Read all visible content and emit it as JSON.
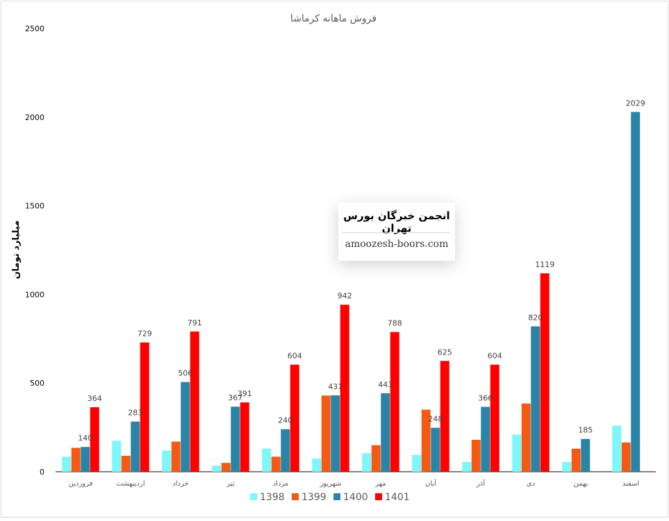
{
  "chart_data": {
    "type": "bar",
    "title": "فروش ماهانه کرماشا",
    "ylabel": "میلیارد تومان",
    "xlabel": "",
    "ylim": [
      0,
      2500
    ],
    "yticks": [
      0,
      500,
      1000,
      1500,
      2000,
      2500
    ],
    "grid": false,
    "legend_position": "bottom",
    "categories": [
      "فروردین",
      "اردیبهشت",
      "خرداد",
      "تیر",
      "مرداد",
      "شهریور",
      "مهر",
      "آبان",
      "آذر",
      "دی",
      "بهمن",
      "اسفند"
    ],
    "series": [
      {
        "name": "1398",
        "color": "#7ef7fb",
        "values": [
          85,
          175,
          120,
          35,
          130,
          75,
          105,
          95,
          55,
          210,
          55,
          260
        ],
        "labels": [
          null,
          null,
          null,
          null,
          null,
          null,
          null,
          null,
          null,
          null,
          null,
          null
        ]
      },
      {
        "name": "1399",
        "color": "#f55a14",
        "values": [
          135,
          90,
          170,
          50,
          85,
          430,
          150,
          350,
          180,
          385,
          130,
          165
        ],
        "labels": [
          null,
          null,
          null,
          null,
          null,
          null,
          null,
          null,
          null,
          null,
          null,
          null
        ]
      },
      {
        "name": "1400",
        "color": "#2a84a6",
        "values": [
          140,
          283,
          506,
          367,
          240,
          431,
          443,
          248,
          366,
          820,
          185,
          2029
        ],
        "labels": [
          "140",
          "283",
          "506",
          "367",
          "240",
          "431",
          "443",
          "248",
          "366",
          "820",
          "185",
          "2029"
        ]
      },
      {
        "name": "1401",
        "color": "#fe0000",
        "values": [
          364,
          729,
          791,
          391,
          604,
          942,
          788,
          625,
          604,
          1119,
          null,
          null
        ],
        "labels": [
          "364",
          "729",
          "791",
          "391",
          "604",
          "942",
          "788",
          "625",
          "604",
          "1119",
          null,
          null
        ]
      }
    ]
  },
  "watermark": {
    "title": "انجمن خبرگان بورس تهران",
    "url": "amoozesh-boors.com"
  }
}
